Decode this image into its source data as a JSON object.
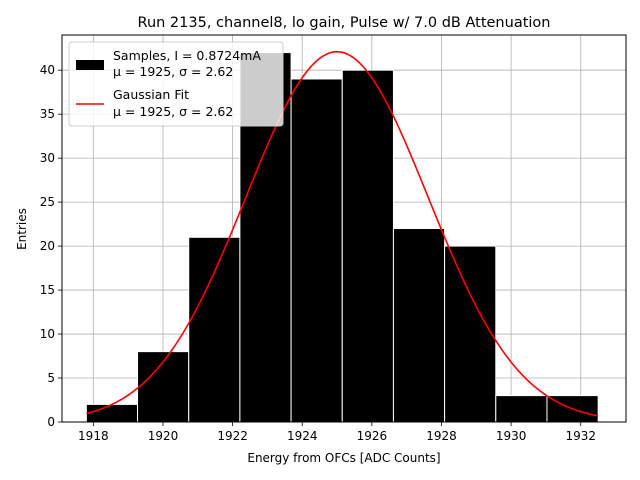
{
  "chart_data": {
    "type": "bar",
    "title": "Run 2135, channel8, lo gain, Pulse w/ 7.0 dB Attenuation",
    "xlabel": "Energy from OFCs [ADC Counts]",
    "ylabel": "Entries",
    "xlim": [
      1917.1,
      1933.3
    ],
    "ylim": [
      0,
      44
    ],
    "xticks": [
      1918,
      1920,
      1922,
      1924,
      1926,
      1928,
      1930,
      1932
    ],
    "yticks": [
      0,
      5,
      10,
      15,
      20,
      25,
      30,
      35,
      40
    ],
    "grid": true,
    "legend_position": "top-left",
    "histogram": {
      "name": "Samples, I = 0.8724mA",
      "stats": "μ = 1925, σ = 2.62",
      "bin_edges": [
        1917.8,
        1919.27,
        1920.74,
        1922.21,
        1923.68,
        1925.15,
        1926.62,
        1928.09,
        1929.56,
        1931.03,
        1932.5
      ],
      "counts": [
        2,
        8,
        21,
        42,
        39,
        40,
        22,
        20,
        3,
        3
      ],
      "color": "#000000",
      "edge_color": "#ffffff"
    },
    "fit": {
      "name": "Gaussian Fit",
      "stats": "μ = 1925, σ = 2.62",
      "mu": 1925.0,
      "sigma": 2.62,
      "amplitude": 42.1,
      "x_range": [
        1917.8,
        1932.5
      ],
      "color": "#ff0000"
    }
  }
}
